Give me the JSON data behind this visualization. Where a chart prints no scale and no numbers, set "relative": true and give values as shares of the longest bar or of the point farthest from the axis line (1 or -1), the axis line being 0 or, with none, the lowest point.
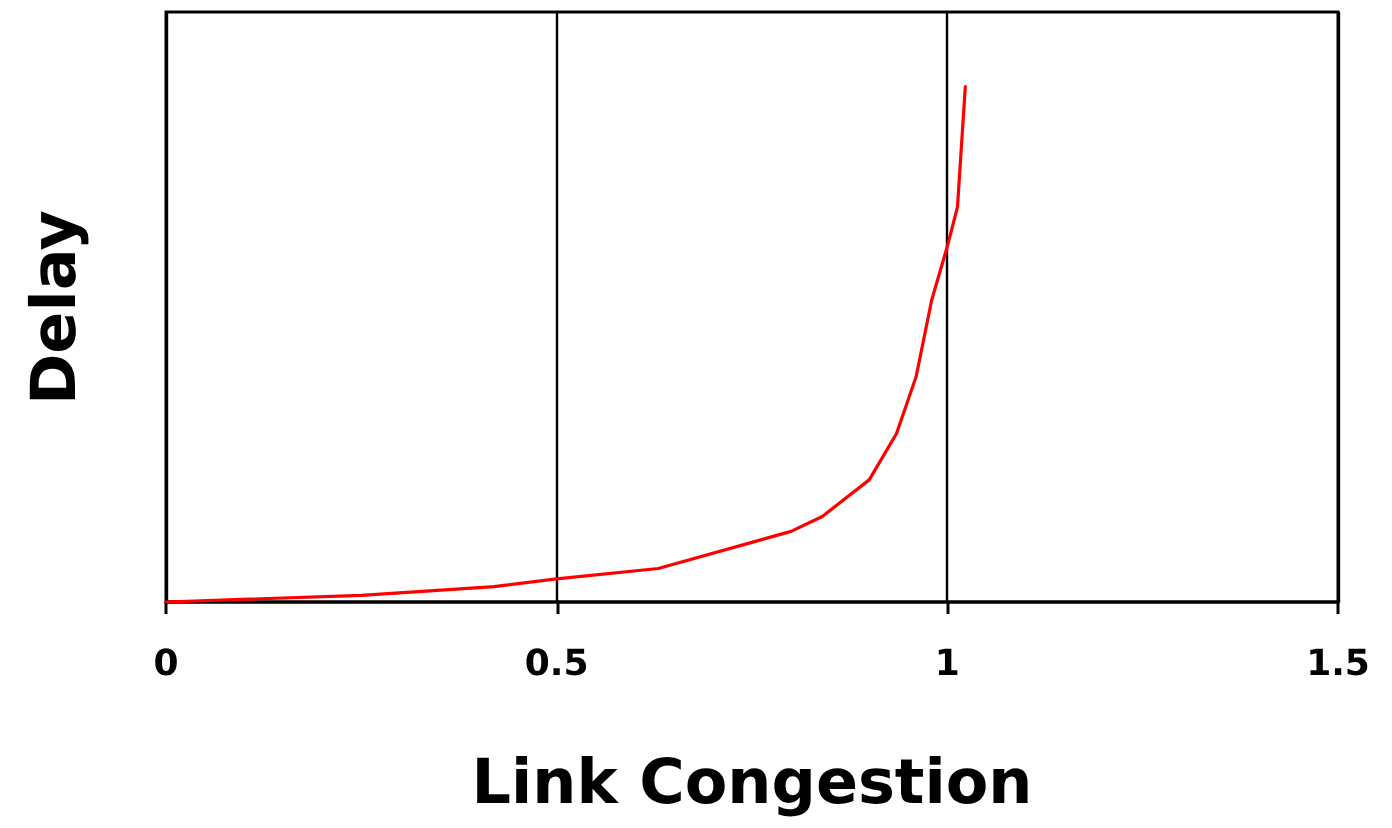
{
  "chart_data": {
    "type": "line",
    "xlabel": "Link Congestion",
    "ylabel": "Delay",
    "relative": true,
    "x": [
      0,
      0.25,
      0.42,
      0.5,
      0.63,
      0.8,
      0.84,
      0.9,
      0.935,
      0.96,
      0.98,
      1.0,
      1.013,
      1.023
    ],
    "series": [
      {
        "color": "#ff0000",
        "values": [
          0,
          0.013,
          0.03,
          0.045,
          0.065,
          0.137,
          0.166,
          0.237,
          0.327,
          0.437,
          0.586,
          0.69,
          0.767,
          1
        ]
      }
    ],
    "xlim": [
      0,
      1.5
    ],
    "xticks": [
      0,
      0.5,
      1,
      1.5
    ],
    "grid": "x",
    "marker": "none",
    "line_style": "solid"
  }
}
